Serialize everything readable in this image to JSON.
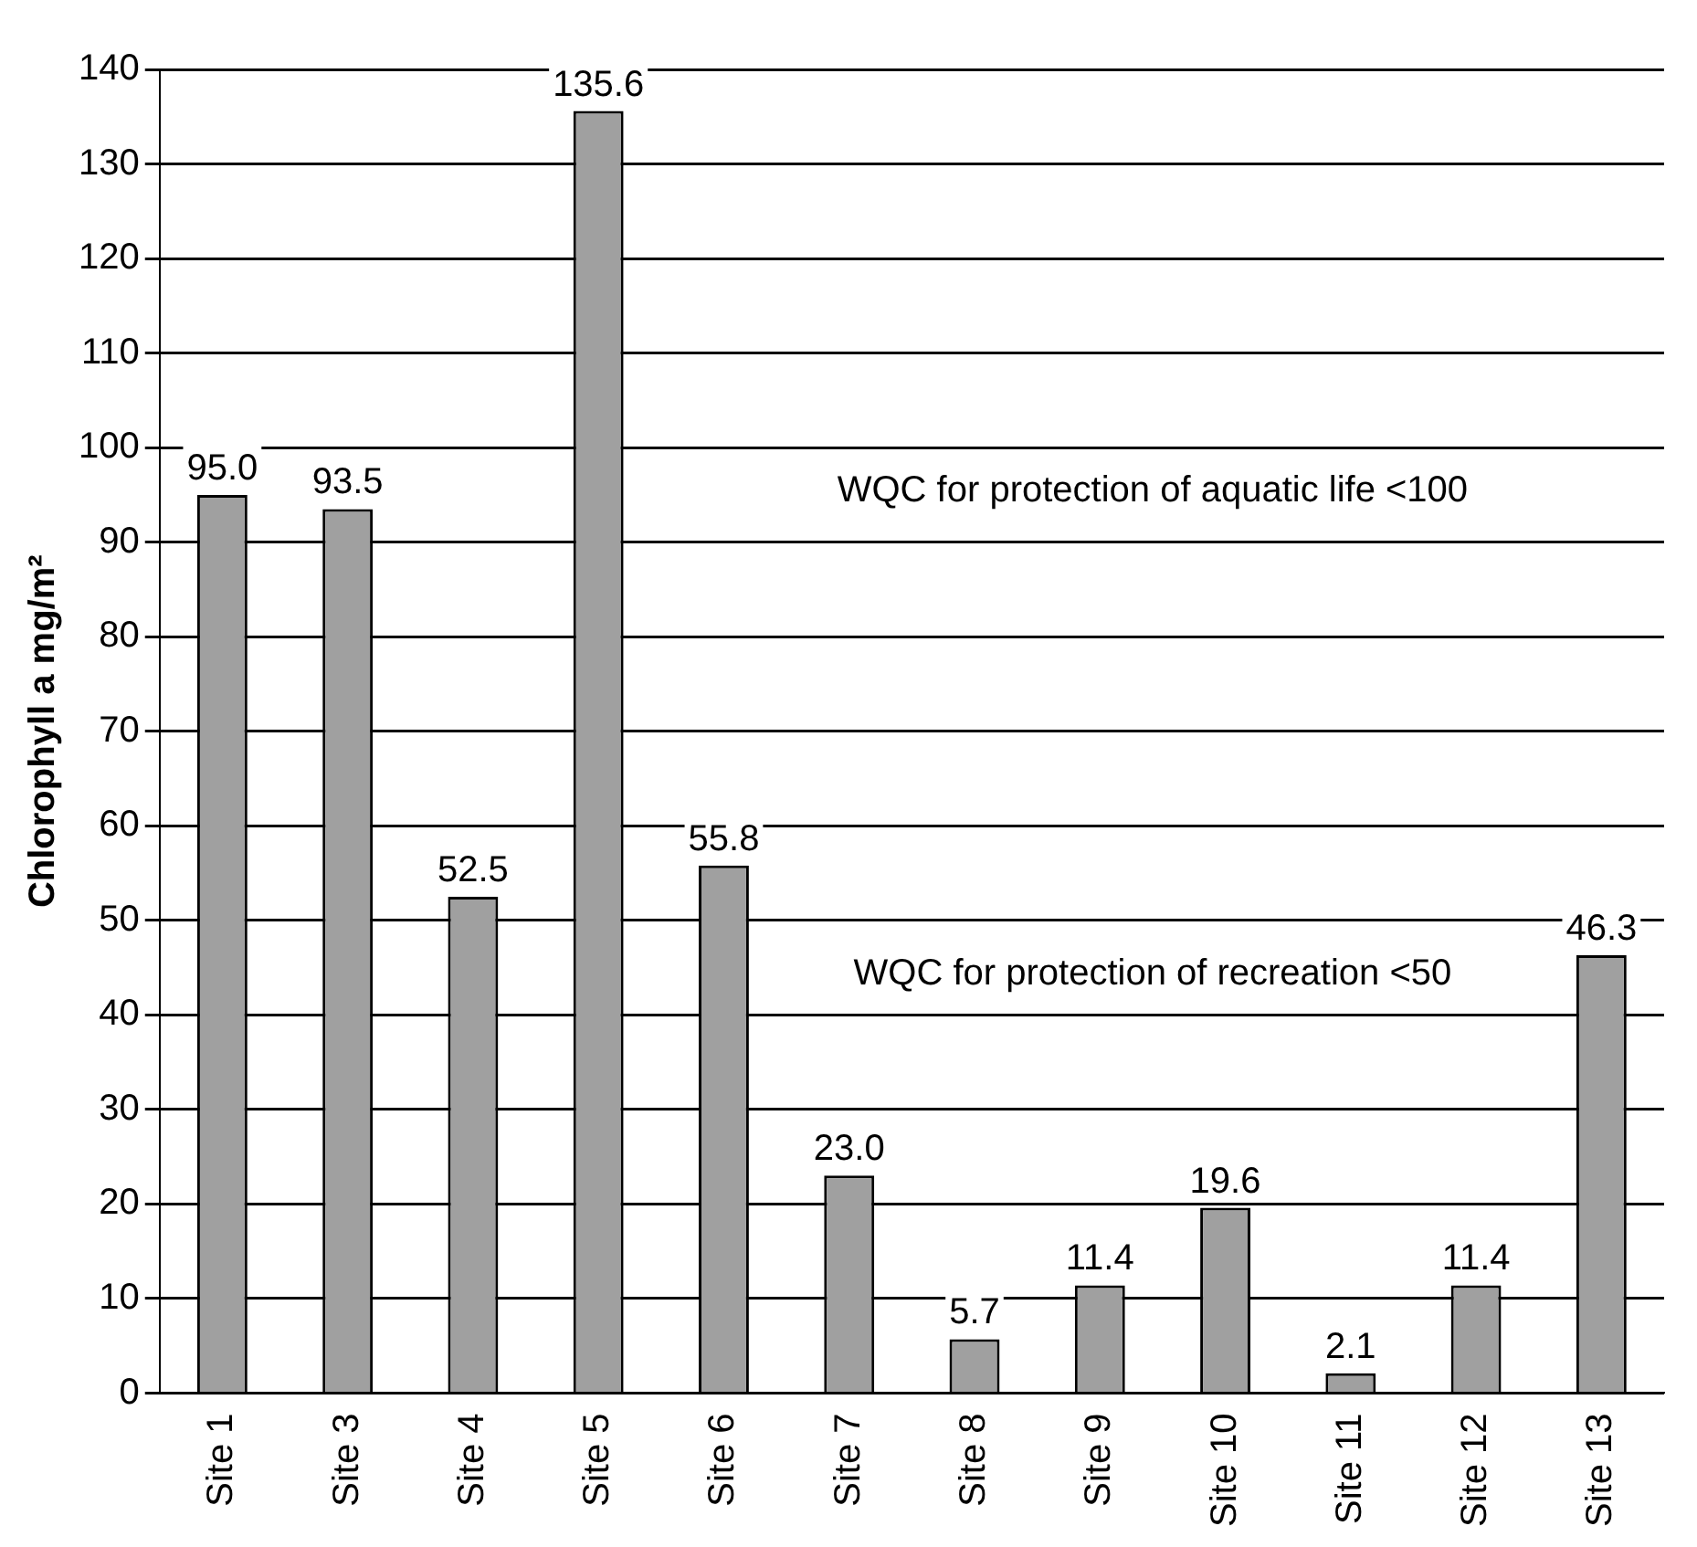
{
  "chart_data": {
    "type": "bar",
    "ylabel": "Chlorophyll a mg/m²",
    "categories": [
      "Site 1",
      "Site 3",
      "Site 4",
      "Site 5",
      "Site 6",
      "Site 7",
      "Site 8",
      "Site 9",
      "Site 10",
      "Site 11",
      "Site 12",
      "Site 13"
    ],
    "values": [
      95.0,
      93.5,
      52.5,
      135.6,
      55.8,
      23.0,
      5.7,
      11.4,
      19.6,
      2.1,
      11.4,
      46.3
    ],
    "value_labels": [
      "95.0",
      "93.5",
      "52.5",
      "135.6",
      "55.8",
      "23.0",
      "5.7",
      "11.4",
      "19.6",
      "2.1",
      "11.4",
      "46.3"
    ],
    "color": "#a0a0a0",
    "ylim": [
      0,
      140
    ],
    "yticks": [
      0,
      10,
      20,
      30,
      40,
      50,
      60,
      70,
      80,
      90,
      100,
      110,
      120,
      130,
      140
    ],
    "grid": "y",
    "legend": false,
    "annotations": [
      "WQC for protection of aquatic life <100",
      "WQC for protection of recreation <50"
    ]
  }
}
